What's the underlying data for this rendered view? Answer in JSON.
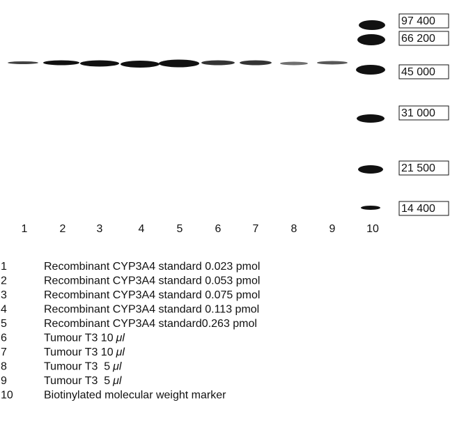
{
  "markers": [
    "97 400",
    "66 200",
    "45 000",
    "31 000",
    "21 500",
    "14 400"
  ],
  "lanes": [
    "1",
    "2",
    "3",
    "4",
    "5",
    "6",
    "7",
    "8",
    "9",
    "10"
  ],
  "legend": [
    {
      "number": "1",
      "text": "Recombinant CYP3A4 standard 0.023 pmol"
    },
    {
      "number": "2",
      "text": "Recombinant CYP3A4 standard 0.053 pmol"
    },
    {
      "number": "3",
      "text": "Recombinant CYP3A4 standard 0.075 pmol"
    },
    {
      "number": "4",
      "text": "Recombinant CYP3A4 standard 0.113 pmol"
    },
    {
      "number": "5",
      "text": "Recombinant CYP3A4 standard0.263 pmol"
    },
    {
      "number": "6",
      "text": "Tumour T3 10",
      "unit": "μl"
    },
    {
      "number": "7",
      "text": "Tumour T3 10",
      "unit": "μl"
    },
    {
      "number": "8",
      "text": "Tumour T3  5",
      "unit": "μl"
    },
    {
      "number": "9",
      "text": "Tumour T3  5",
      "unit": "μl"
    },
    {
      "number": "10",
      "text": "Biotinylated molecular weight marker"
    }
  ]
}
